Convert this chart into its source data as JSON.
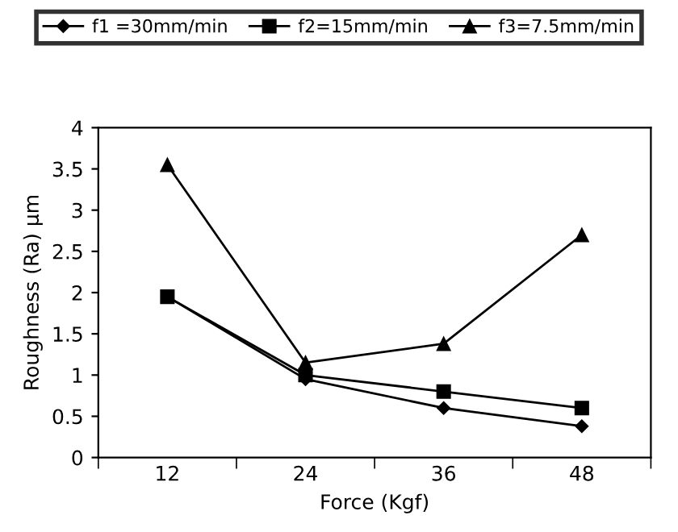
{
  "chart_data": {
    "type": "line",
    "xlabel": "Force (Kgf)",
    "ylabel": "Roughness (Ra) µm",
    "categories": [
      "12",
      "24",
      "36",
      "48"
    ],
    "series": [
      {
        "name": "f1 =30mm/min",
        "color": "#000000",
        "marker": "diamond",
        "values": [
          1.95,
          0.95,
          0.6,
          0.38
        ]
      },
      {
        "name": "f2=15mm/min",
        "color": "#000000",
        "marker": "square",
        "values": [
          1.95,
          1.0,
          0.8,
          0.6
        ]
      },
      {
        "name": "f3=7.5mm/min",
        "color": "#000000",
        "marker": "triangle",
        "values": [
          3.55,
          1.15,
          1.38,
          2.7
        ]
      }
    ],
    "ylim": [
      0,
      4
    ],
    "yticks": [
      0,
      0.5,
      1,
      1.5,
      2,
      2.5,
      3,
      3.5,
      4
    ],
    "grid": false,
    "legend": "top",
    "line_style": "solid"
  }
}
